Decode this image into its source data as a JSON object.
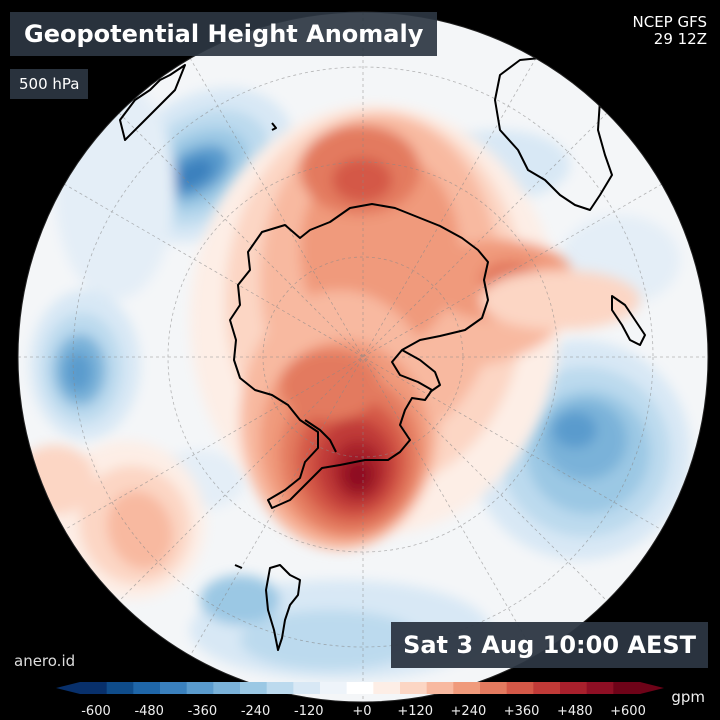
{
  "title": "Geopotential Height Anomaly",
  "level": "500 hPa",
  "model": {
    "name": "NCEP GFS",
    "run": "29 12Z"
  },
  "credit": "anero.id",
  "valid_time": "Sat 3 Aug 10:00 AEST",
  "colorbar": {
    "unit": "gpm",
    "tick_labels": [
      "-600",
      "-480",
      "-360",
      "-240",
      "-120",
      "+0",
      "+120",
      "+240",
      "+360",
      "+480",
      "+600"
    ],
    "colors": [
      "#08306b",
      "#0f4c8a",
      "#1f66a8",
      "#3a80bd",
      "#5a9bcd",
      "#7ab2d9",
      "#9bc8e4",
      "#bcdaee",
      "#d8e8f5",
      "#eef4fa",
      "#ffffff",
      "#fdeee6",
      "#fcd6c4",
      "#f8b9a0",
      "#f09a7b",
      "#e37a5f",
      "#d45847",
      "#c03a37",
      "#a8202c",
      "#8e0f24",
      "#6e0318"
    ],
    "low_color": "#08306b",
    "high_color": "#6e0318"
  },
  "map": {
    "ocean_color": "#f4f6f8",
    "coastline_color": "#000000"
  }
}
